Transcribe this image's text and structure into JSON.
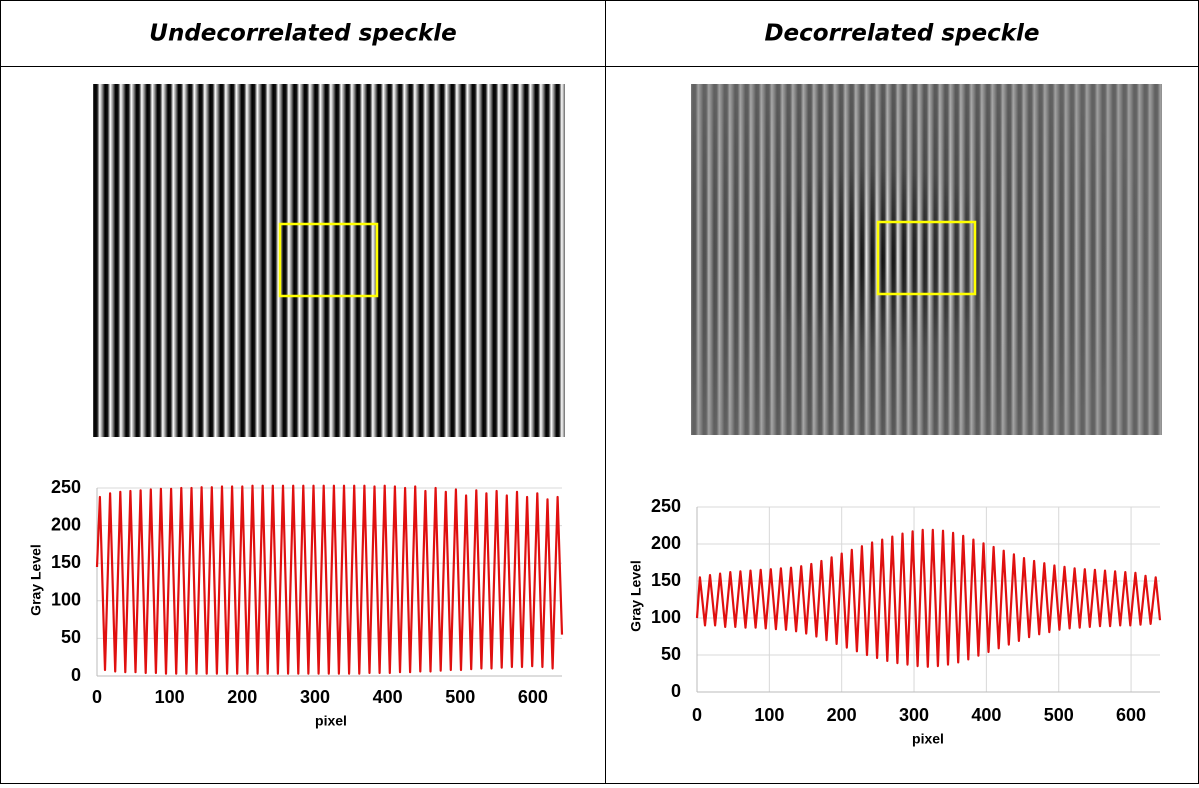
{
  "table": {
    "headers": [
      "Undecorrelated speckle",
      "Decorrelated speckle"
    ]
  },
  "chart_data": [
    {
      "type": "line",
      "xlabel": "pixel",
      "ylabel": "Gray Level",
      "color": "#e01010",
      "grid": true,
      "xlim": [
        0,
        640
      ],
      "xticks": [
        0,
        100,
        200,
        300,
        400,
        500,
        600
      ],
      "ylim": [
        0,
        250
      ],
      "yticks": [
        0,
        50,
        100,
        150,
        200,
        250
      ],
      "x": [
        0,
        4,
        11,
        18,
        25,
        32,
        39,
        46,
        53,
        60,
        67,
        74,
        81,
        88,
        95,
        102,
        109,
        116,
        123,
        130,
        137,
        144,
        151,
        158,
        165,
        172,
        179,
        186,
        193,
        200,
        207,
        214,
        221,
        228,
        235,
        242,
        249,
        256,
        263,
        270,
        277,
        284,
        291,
        298,
        305,
        312,
        319,
        326,
        333,
        340,
        347,
        354,
        361,
        368,
        375,
        382,
        389,
        396,
        403,
        410,
        417,
        424,
        431,
        438,
        445,
        452,
        459,
        466,
        473,
        480,
        487,
        494,
        501,
        508,
        515,
        522,
        529,
        536,
        543,
        550,
        557,
        564,
        571,
        578,
        585,
        592,
        599,
        606,
        613,
        620,
        627,
        634,
        640
      ],
      "values": [
        145,
        238,
        8,
        243,
        6,
        245,
        5,
        246,
        5,
        247,
        4,
        248,
        4,
        249,
        3,
        249,
        3,
        250,
        3,
        250,
        3,
        251,
        3,
        251,
        3,
        252,
        3,
        252,
        3,
        252,
        3,
        253,
        3,
        253,
        3,
        253,
        3,
        253,
        3,
        253,
        3,
        253,
        3,
        253,
        3,
        253,
        3,
        253,
        3,
        253,
        3,
        253,
        3,
        253,
        4,
        252,
        4,
        253,
        4,
        252,
        5,
        250,
        5,
        252,
        6,
        246,
        6,
        250,
        7,
        245,
        8,
        248,
        8,
        240,
        9,
        247,
        10,
        243,
        10,
        246,
        11,
        240,
        12,
        245,
        12,
        238,
        13,
        243,
        12,
        235,
        10,
        238,
        55
      ]
    },
    {
      "type": "line",
      "xlabel": "pixel",
      "ylabel": "Gray Level",
      "color": "#e01010",
      "grid": true,
      "xlim": [
        0,
        640
      ],
      "xticks": [
        0,
        100,
        200,
        300,
        400,
        500,
        600
      ],
      "ylim": [
        0,
        250
      ],
      "yticks": [
        0,
        50,
        100,
        150,
        200,
        250
      ],
      "x": [
        0,
        4,
        11,
        18,
        25,
        32,
        39,
        46,
        53,
        60,
        67,
        74,
        81,
        88,
        95,
        102,
        109,
        116,
        123,
        130,
        137,
        144,
        151,
        158,
        165,
        172,
        179,
        186,
        193,
        200,
        207,
        214,
        221,
        228,
        235,
        242,
        249,
        256,
        263,
        270,
        277,
        284,
        291,
        298,
        305,
        312,
        319,
        326,
        333,
        340,
        347,
        354,
        361,
        368,
        375,
        382,
        389,
        396,
        403,
        410,
        417,
        424,
        431,
        438,
        445,
        452,
        459,
        466,
        473,
        480,
        487,
        494,
        501,
        508,
        515,
        522,
        529,
        536,
        543,
        550,
        557,
        564,
        571,
        578,
        585,
        592,
        599,
        606,
        613,
        620,
        627,
        634,
        640
      ],
      "values": [
        100,
        155,
        90,
        158,
        90,
        160,
        88,
        162,
        88,
        163,
        87,
        164,
        87,
        165,
        86,
        166,
        85,
        167,
        84,
        168,
        82,
        170,
        79,
        173,
        75,
        177,
        70,
        182,
        65,
        187,
        60,
        192,
        55,
        197,
        50,
        202,
        46,
        206,
        42,
        210,
        39,
        214,
        37,
        217,
        35,
        219,
        34,
        219,
        35,
        218,
        37,
        215,
        40,
        211,
        44,
        206,
        49,
        201,
        54,
        196,
        59,
        191,
        64,
        186,
        69,
        181,
        74,
        177,
        78,
        174,
        81,
        171,
        84,
        169,
        86,
        167,
        87,
        166,
        88,
        165,
        89,
        164,
        89,
        163,
        90,
        162,
        90,
        161,
        91,
        157,
        92,
        155,
        97
      ]
    }
  ]
}
